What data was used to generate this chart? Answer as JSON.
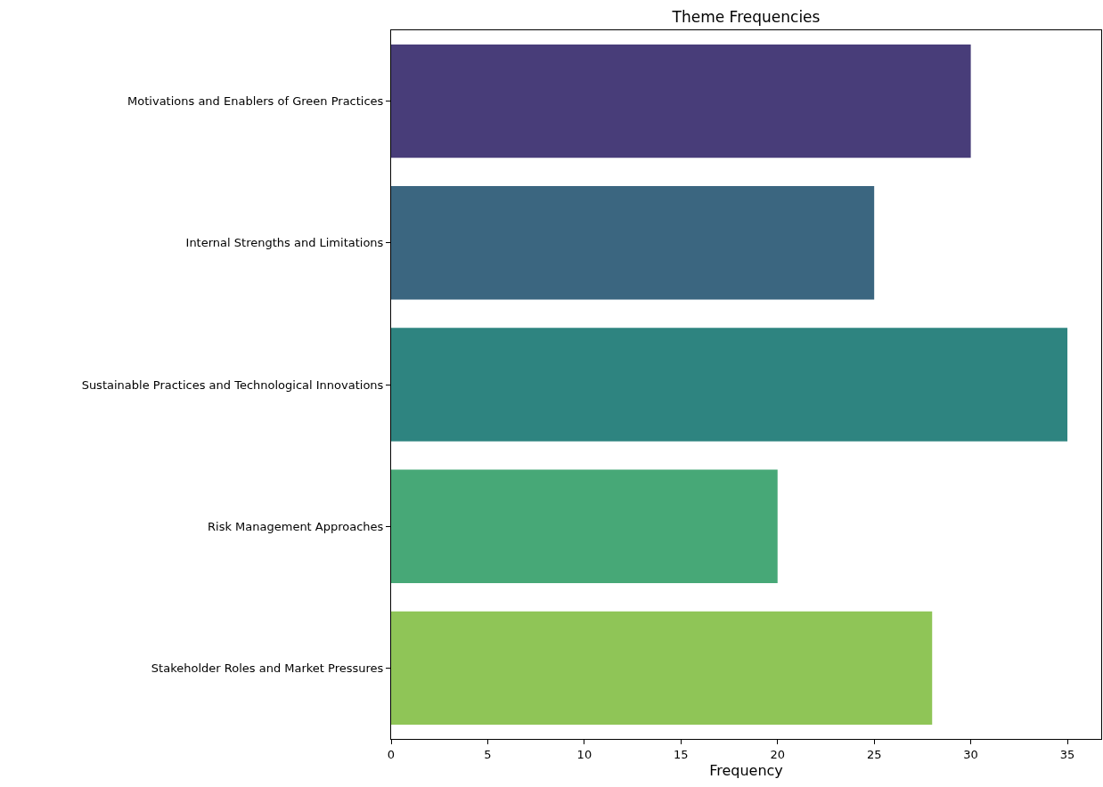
{
  "chart_data": {
    "type": "bar",
    "orientation": "horizontal",
    "title": "Theme Frequencies",
    "xlabel": "Frequency",
    "categories": [
      "Motivations and Enablers of Green Practices",
      "Internal Strengths and Limitations",
      "Sustainable Practices and Technological Innovations",
      "Risk Management Approaches",
      "Stakeholder Roles and Market Pressures"
    ],
    "values": [
      30,
      25,
      35,
      20,
      28
    ],
    "colors": [
      "#483d79",
      "#3b6680",
      "#2e8480",
      "#47a877",
      "#8fc557"
    ],
    "xlim": [
      0,
      36.75
    ],
    "xticks": [
      0,
      5,
      10,
      15,
      20,
      25,
      30,
      35
    ],
    "grid": false
  }
}
